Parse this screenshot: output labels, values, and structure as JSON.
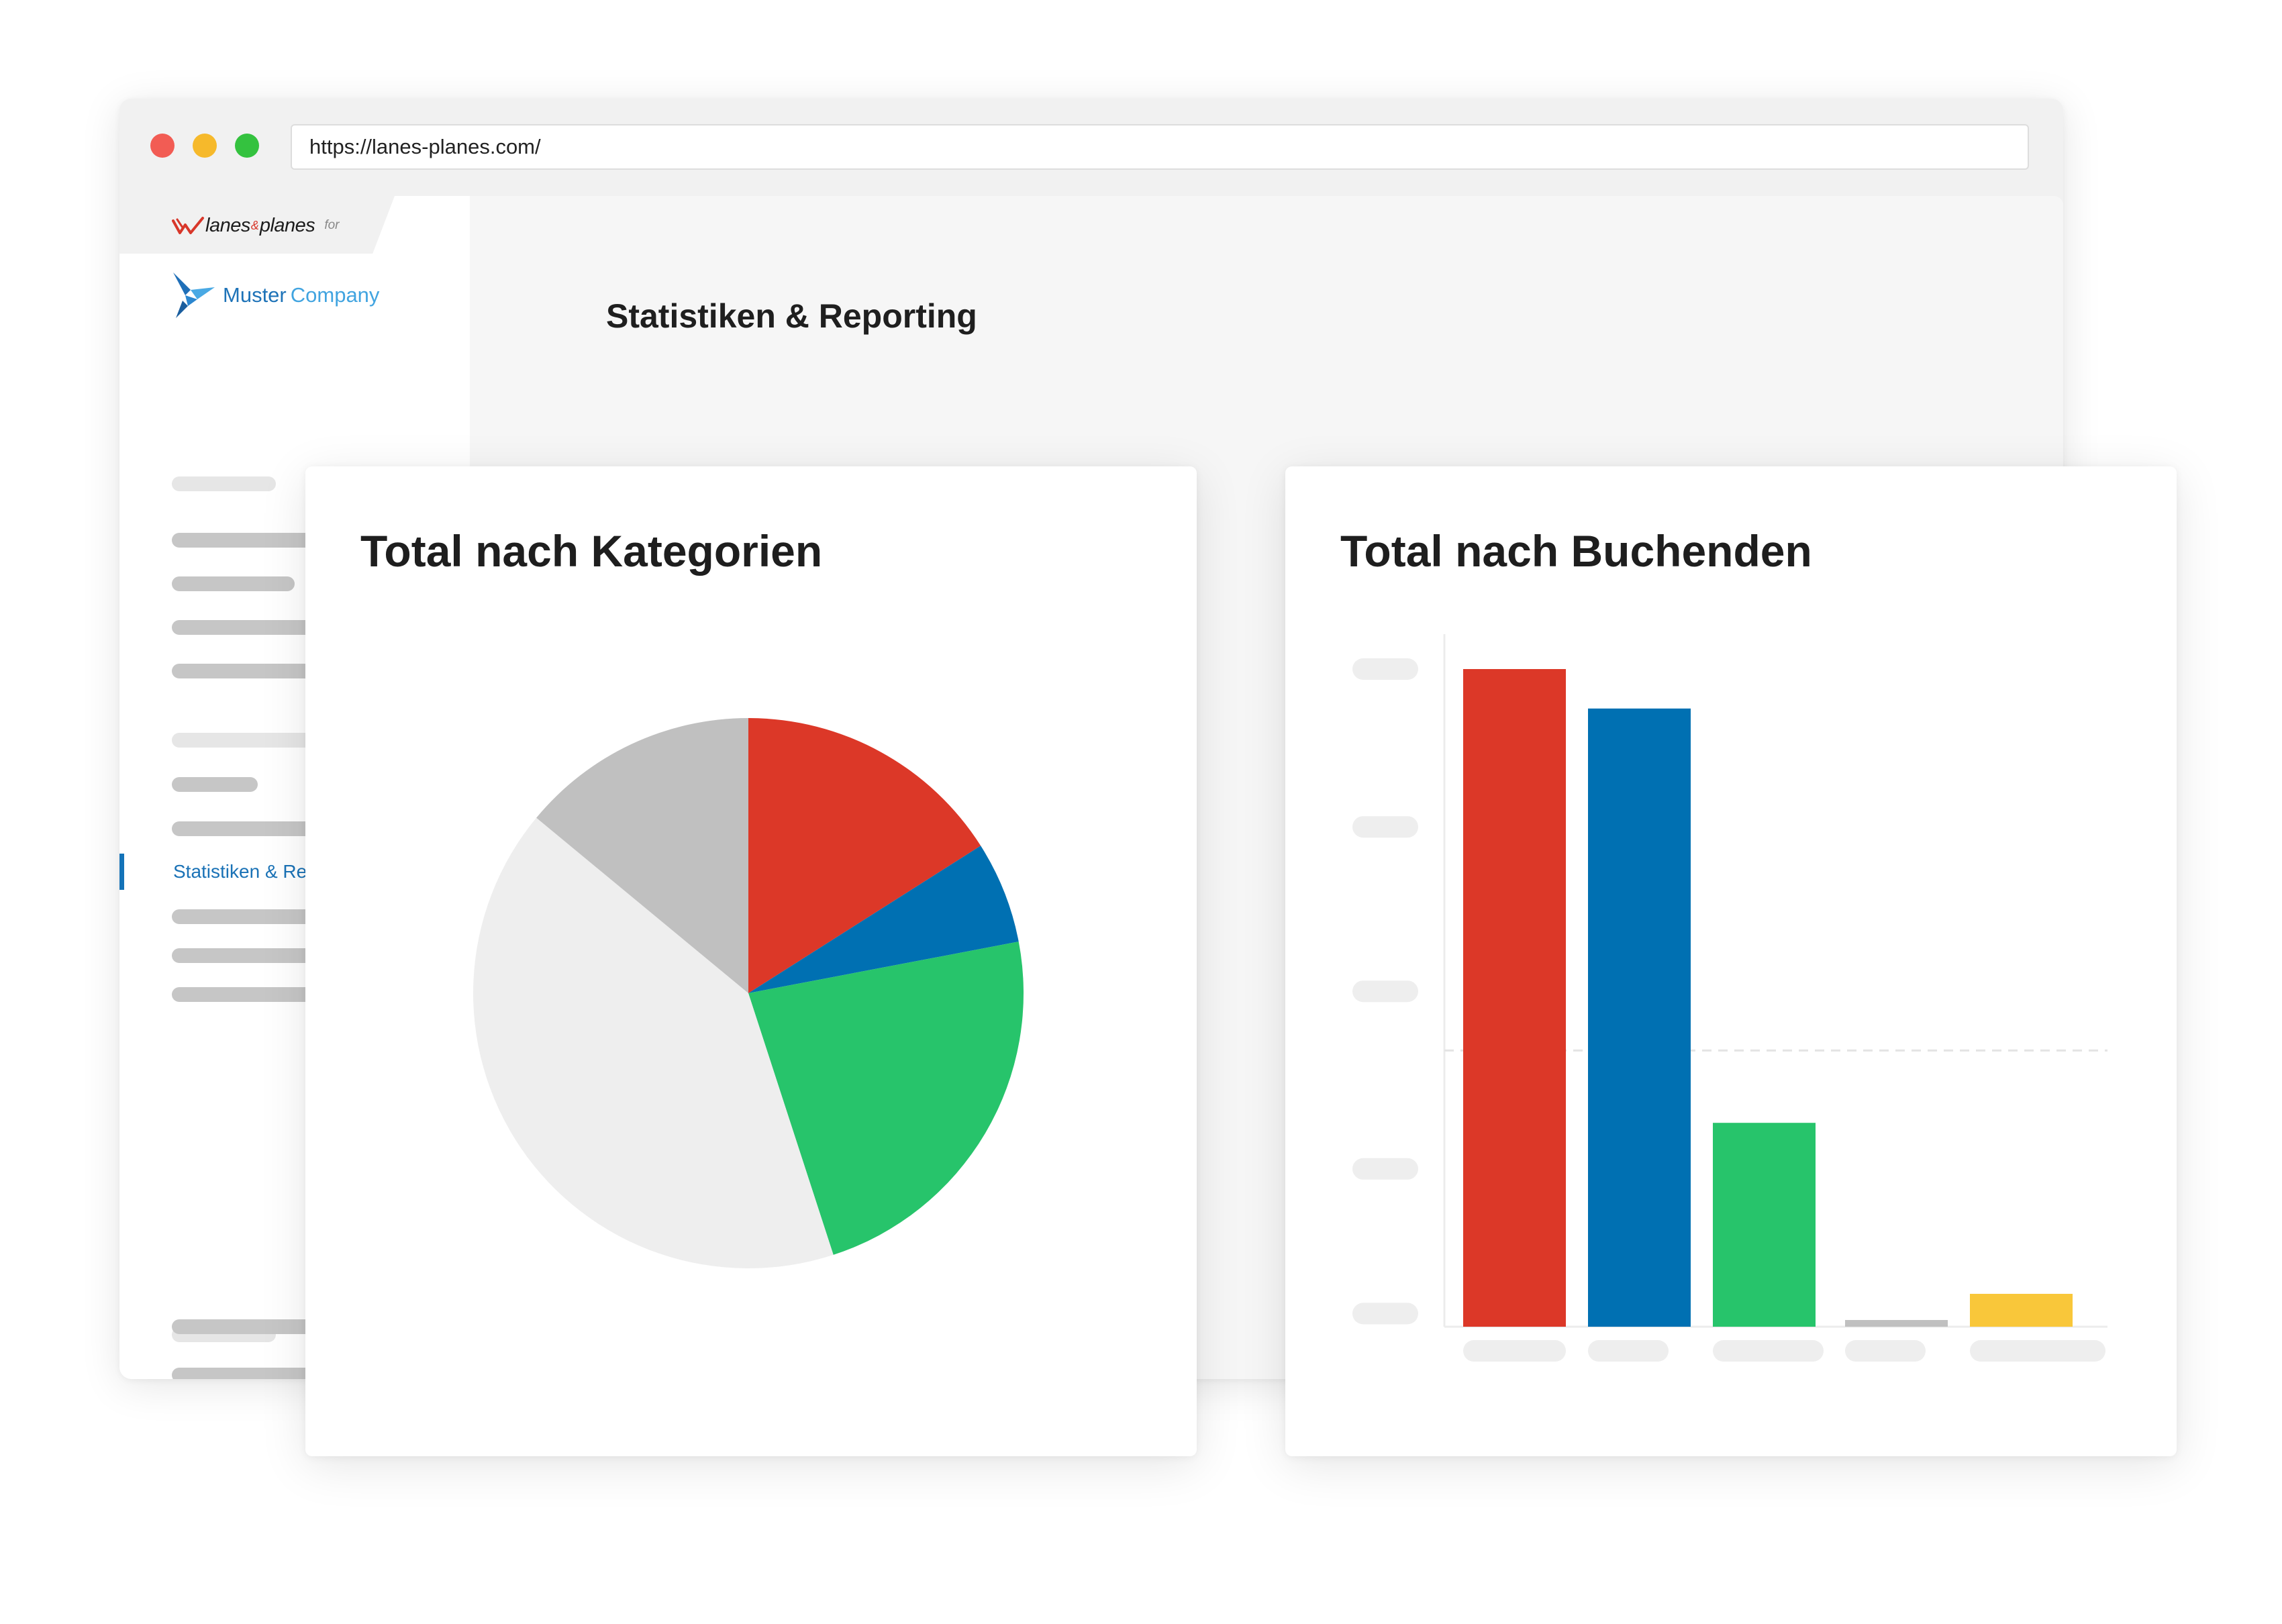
{
  "browser": {
    "url": "https://lanes-planes.com/",
    "controls": {
      "close_color": "#f25c54",
      "minimize_color": "#f6b92b",
      "maximize_color": "#34c23f"
    }
  },
  "brand": {
    "lanes": "lanes",
    "amp": "&",
    "planes": "planes",
    "for_label": "for",
    "accent_color": "#d8372a",
    "company_first": "Muster",
    "company_second": "Company",
    "company_icon": "bird-icon"
  },
  "sidebar": {
    "active_item": "Statistiken & Reporting"
  },
  "page": {
    "title": "Statistiken & Reporting"
  },
  "cards": {
    "categories_title": "Total nach Kategorien",
    "bookers_title": "Total nach Buchenden"
  },
  "chart_data": [
    {
      "type": "pie",
      "title": "Total nach Kategorien",
      "slices": [
        {
          "value": 16,
          "color": "#dc3828"
        },
        {
          "value": 6,
          "color": "#0070b2"
        },
        {
          "value": 23,
          "color": "#27c46b"
        },
        {
          "value": 41,
          "color": "#eeeeee"
        },
        {
          "value": 14,
          "color": "#c0c0c0"
        }
      ],
      "start_angle_deg": 0,
      "direction": "clockwise",
      "legend": "none"
    },
    {
      "type": "bar",
      "title": "Total nach Buchenden",
      "values": [
        100,
        94,
        31,
        1,
        5
      ],
      "colors": [
        "#dc3828",
        "#0070b2",
        "#27c46b",
        "#c0c0c0",
        "#f9c73a"
      ],
      "ylim": [
        0,
        100
      ],
      "reference_line": 42,
      "grid": false,
      "tick_labels": "placeholder",
      "legend": "none"
    }
  ]
}
